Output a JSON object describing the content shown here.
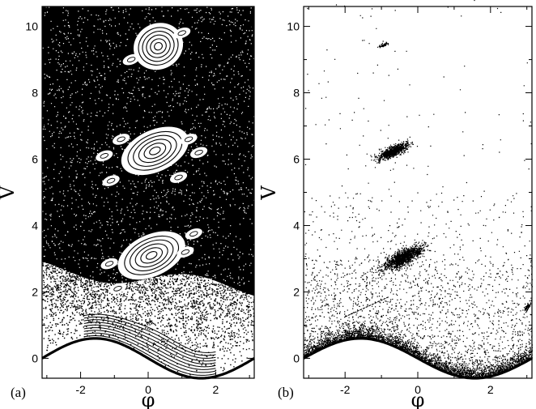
{
  "chart_data": [
    {
      "panel_label": "(a)",
      "type": "scatter",
      "style": "dense_chaotic_sea_with_islands",
      "xlabel": "φ",
      "ylabel": "V",
      "xlim": [
        -3.14,
        3.14
      ],
      "ylim": [
        -0.6,
        10.6
      ],
      "xticks": [
        -2,
        0,
        2
      ],
      "yticks": [
        0,
        2,
        4,
        6,
        8,
        10
      ],
      "xtick_labels": [
        "-2",
        "0",
        "2"
      ],
      "ytick_labels": [
        "0",
        "2",
        "4",
        "6",
        "8",
        "10"
      ],
      "colors": {
        "points": "#000000",
        "background": "#ffffff"
      },
      "boundary": {
        "function": "0.6*sin(-phi)"
      },
      "islands": [
        {
          "center": [
            0.3,
            9.4
          ],
          "rx": 0.6,
          "ry": 0.55,
          "tilt_deg": 30
        },
        {
          "center": [
            0.2,
            6.25
          ],
          "rx": 0.85,
          "ry": 0.5,
          "tilt_deg": 25
        },
        {
          "center": [
            0.1,
            3.1
          ],
          "rx": 0.85,
          "ry": 0.5,
          "tilt_deg": 25
        }
      ],
      "small_islands": [
        [
          -0.8,
          6.6
        ],
        [
          1.2,
          6.6
        ],
        [
          -1.1,
          5.35
        ],
        [
          0.9,
          5.45
        ],
        [
          -1.3,
          6.1
        ],
        [
          1.5,
          6.2
        ],
        [
          -1.15,
          2.85
        ],
        [
          1.35,
          3.75
        ],
        [
          -0.9,
          2.1
        ],
        [
          1.1,
          3.2
        ],
        [
          -0.5,
          9.0
        ],
        [
          1.0,
          9.8
        ]
      ]
    },
    {
      "panel_label": "(b)",
      "type": "scatter",
      "style": "sparse_points_with_clusters",
      "xlabel": "φ",
      "ylabel": "V",
      "xlim": [
        -3.14,
        3.14
      ],
      "ylim": [
        -0.6,
        10.6
      ],
      "xticks": [
        -2,
        0,
        2
      ],
      "yticks": [
        0,
        2,
        4,
        6,
        8,
        10
      ],
      "xtick_labels": [
        "-2",
        "0",
        "2"
      ],
      "ytick_labels": [
        "0",
        "2",
        "4",
        "6",
        "8",
        "10"
      ],
      "colors": {
        "points": "#000000",
        "background": "#ffffff"
      },
      "boundary": {
        "function": "0.6*sin(-phi)"
      },
      "clusters": [
        {
          "center": [
            -0.95,
            9.45
          ],
          "rx": 0.1,
          "ry": 0.06,
          "n": 60
        },
        {
          "center": [
            -0.7,
            6.25
          ],
          "rx": 0.35,
          "ry": 0.22,
          "n": 900
        },
        {
          "center": [
            -0.4,
            3.05
          ],
          "rx": 0.45,
          "ry": 0.3,
          "n": 1300
        },
        {
          "center": [
            3.0,
            1.55
          ],
          "rx": 0.07,
          "ry": 0.12,
          "n": 80
        }
      ],
      "streak": {
        "from": [
          -2.0,
          1.25
        ],
        "to": [
          -0.8,
          1.85
        ]
      }
    }
  ]
}
